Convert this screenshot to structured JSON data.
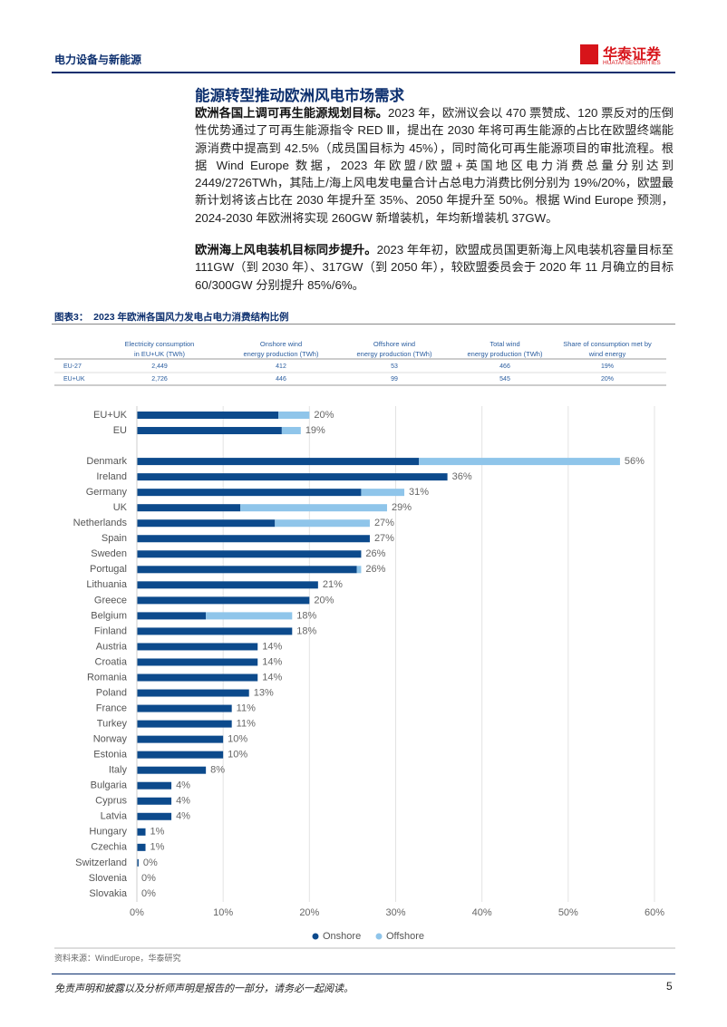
{
  "header": {
    "section": "电力设备与新能源",
    "logo_cn": "华泰证券",
    "logo_en": "HUATAI SECURITIES"
  },
  "title": "能源转型推动欧洲风电市场需求",
  "paragraphs": [
    {
      "lead": "欧洲各国上调可再生能源规划目标。",
      "text": "2023 年，欧洲议会以 470 票赞成、120 票反对的压倒性优势通过了可再生能源指令 RED Ⅲ，提出在 2030 年将可再生能源的占比在欧盟终端能源消费中提高到 42.5%（成员国目标为 45%），同时简化可再生能源项目的审批流程。根据 Wind Europe 数据，2023 年欧盟/欧盟+英国地区电力消费总量分别达到 2449/2726TWh，其陆上/海上风电发电量合计占总电力消费比例分别为 19%/20%，欧盟最新计划将该占比在 2030 年提升至 35%、2050 年提升至 50%。根据 Wind Europe 预测，2024-2030 年欧洲将实现 260GW 新增装机，年均新增装机 37GW。"
    },
    {
      "lead": "欧洲海上风电装机目标同步提升。",
      "text": "2023 年年初，欧盟成员国更新海上风电装机容量目标至 111GW（到 2030 年）、317GW（到 2050 年），较欧盟委员会于 2020 年 11 月确立的目标 60/300GW 分别提升 85%/6%。"
    }
  ],
  "figure_caption": "图表3：  2023 年欧洲各国风力发电占电力消费结构比例",
  "table": {
    "header": [
      [
        "Electricity consumption",
        "in EU+UK (TWh)"
      ],
      [
        "Onshore wind",
        "energy production (TWh)"
      ],
      [
        "Offshore wind",
        "energy production (TWh)"
      ],
      [
        "Total wind",
        "energy production (TWh)"
      ],
      [
        "Share of consumption met by",
        "wind energy"
      ]
    ],
    "rows": [
      {
        "label": "EU-27",
        "cells": [
          "2,449",
          "412",
          "53",
          "466",
          "19%"
        ]
      },
      {
        "label": "EU+UK",
        "cells": [
          "2,726",
          "446",
          "99",
          "545",
          "20%"
        ]
      }
    ]
  },
  "chart_data": {
    "type": "stacked_barh",
    "categories": [
      "EU+UK",
      "EU",
      null,
      "Denmark",
      "Ireland",
      "Germany",
      "UK",
      "Netherlands",
      "Spain",
      "Sweden",
      "Portugal",
      "Lithuania",
      "Greece",
      "Belgium",
      "Finland",
      "Austria",
      "Croatia",
      "Romania",
      "Poland",
      "France",
      "Turkey",
      "Norway",
      "Estonia",
      "Italy",
      "Bulgaria",
      "Cyprus",
      "Latvia",
      "Hungary",
      "Czechia",
      "Switzerland",
      "Slovenia",
      "Slovakia"
    ],
    "series": [
      {
        "name": "Onshore",
        "color": "#0c4a8c",
        "values": [
          16.4,
          16.8,
          null,
          32.7,
          36,
          26,
          12,
          16,
          27,
          26,
          25.5,
          21,
          20,
          8,
          18,
          14,
          14,
          14,
          13,
          11,
          11,
          10,
          10,
          8,
          4,
          4,
          4,
          1,
          1,
          0.2,
          0,
          0
        ]
      },
      {
        "name": "Offshore",
        "color": "#8fc5ea",
        "values": [
          3.6,
          2.2,
          null,
          23.3,
          0,
          5,
          17,
          11,
          0,
          0,
          0.5,
          0,
          0,
          10,
          0,
          0,
          0,
          0,
          0,
          0,
          0,
          0,
          0,
          0,
          0,
          0,
          0,
          0,
          0,
          0,
          0,
          0
        ]
      }
    ],
    "totals": [
      20,
      19,
      null,
      56,
      36,
      31,
      29,
      27,
      27,
      26,
      26,
      21,
      20,
      18,
      18,
      14,
      14,
      14,
      13,
      11,
      11,
      10,
      10,
      8,
      4,
      4,
      4,
      1,
      1,
      0.2,
      0,
      0
    ],
    "value_labels": [
      "20%",
      "19%",
      null,
      "56%",
      "36%",
      "31%",
      "29%",
      "27%",
      "27%",
      "26%",
      "26%",
      "21%",
      "20%",
      "18%",
      "18%",
      "14%",
      "14%",
      "14%",
      "13%",
      "11%",
      "11%",
      "10%",
      "10%",
      "8%",
      "4%",
      "4%",
      "4%",
      "1%",
      "1%",
      "0%",
      "0%",
      "0%"
    ],
    "xlim": [
      0,
      60
    ],
    "xticks": [
      {
        "value": 0,
        "label": "0%"
      },
      {
        "value": 10,
        "label": "10%"
      },
      {
        "value": 20,
        "label": "20%"
      },
      {
        "value": 30,
        "label": "30%"
      },
      {
        "value": 40,
        "label": "40%"
      },
      {
        "value": 50,
        "label": "50%"
      },
      {
        "value": 60,
        "label": "60%"
      }
    ],
    "grid": true,
    "legend": "bottom"
  },
  "source": "资料来源：WindEurope，华泰研究",
  "footer": {
    "disclaimer": "免责声明和披露以及分析师声明是报告的一部分，请务必一起阅读。",
    "page": "5"
  }
}
